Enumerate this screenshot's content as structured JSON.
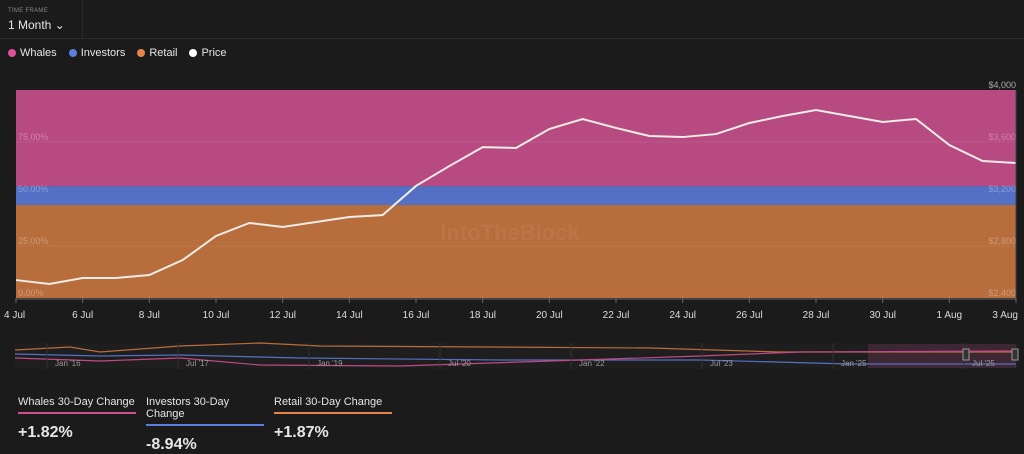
{
  "time_frame": {
    "label": "TIME FRAME",
    "value": "1 Month"
  },
  "legend": [
    {
      "label": "Whales",
      "color": "#e0509c"
    },
    {
      "label": "Investors",
      "color": "#5b7fe0"
    },
    {
      "label": "Retail",
      "color": "#e8844a"
    },
    {
      "label": "Price",
      "color": "#ffffff"
    }
  ],
  "watermark": "IntoTheBlock",
  "chart_data": {
    "type": "area",
    "stacked_percent": true,
    "x": [
      "4 Jul",
      "5 Jul",
      "6 Jul",
      "7 Jul",
      "8 Jul",
      "9 Jul",
      "10 Jul",
      "11 Jul",
      "12 Jul",
      "13 Jul",
      "14 Jul",
      "15 Jul",
      "16 Jul",
      "17 Jul",
      "18 Jul",
      "19 Jul",
      "20 Jul",
      "21 Jul",
      "22 Jul",
      "23 Jul",
      "24 Jul",
      "25 Jul",
      "26 Jul",
      "27 Jul",
      "28 Jul",
      "29 Jul",
      "30 Jul",
      "31 Jul",
      "1 Aug",
      "2 Aug",
      "3 Aug"
    ],
    "x_tick_labels": [
      "4 Jul",
      "6 Jul",
      "8 Jul",
      "10 Jul",
      "12 Jul",
      "14 Jul",
      "16 Jul",
      "18 Jul",
      "20 Jul",
      "22 Jul",
      "24 Jul",
      "26 Jul",
      "28 Jul",
      "30 Jul",
      "1 Aug",
      "3 Aug"
    ],
    "series": [
      {
        "name": "Retail",
        "color": "#b86d3d",
        "value": 44.7
      },
      {
        "name": "Investors",
        "color": "#5470c4",
        "value": 9.1
      },
      {
        "name": "Whales",
        "color": "#b84a82",
        "value": 46.2
      }
    ],
    "price": {
      "name": "Price",
      "color": "#f0ece6",
      "values": [
        2538,
        2508,
        2554,
        2554,
        2577,
        2692,
        2877,
        2977,
        2946,
        2985,
        3023,
        3038,
        3262,
        3415,
        3561,
        3554,
        3700,
        3777,
        3708,
        3646,
        3638,
        3661,
        3746,
        3800,
        3846,
        3800,
        3754,
        3777,
        3577,
        3454,
        3438
      ]
    },
    "y_left": {
      "range": [
        0,
        100
      ],
      "ticks": [
        "0.00%",
        "25.00%",
        "50.00%",
        "75.00%"
      ]
    },
    "y_right": {
      "range": [
        2400,
        4000
      ],
      "ticks": [
        "$2,400",
        "$2,800",
        "$3,200",
        "$3,600",
        "$4,000"
      ]
    },
    "navigator_labels": [
      "Jan '16",
      "Jul '17",
      "Jan '19",
      "Jul '20",
      "Jan '22",
      "Jul '23",
      "Jan '25",
      "Jul '25"
    ]
  },
  "stats": [
    {
      "label": "Whales 30-Day Change",
      "value": "+1.82%",
      "color": "#d0508f"
    },
    {
      "label": "Investors 30-Day Change",
      "value": "-8.94%",
      "color": "#5b7fe0"
    },
    {
      "label": "Retail 30-Day Change",
      "value": "+1.87%",
      "color": "#e8844a"
    }
  ]
}
